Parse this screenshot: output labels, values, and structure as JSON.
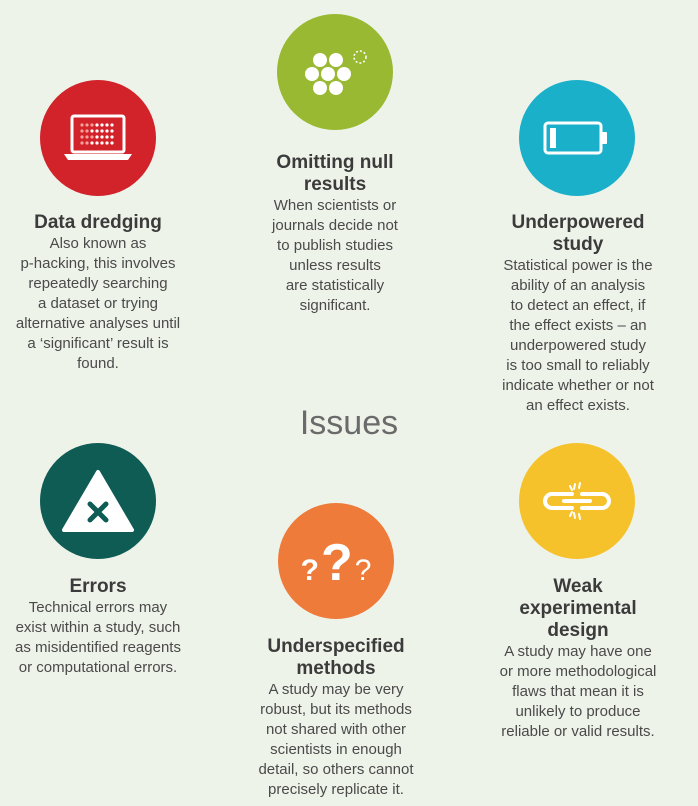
{
  "center_label": "Issues",
  "items": [
    {
      "title_lines": [
        "Data dredging"
      ],
      "desc_lines": [
        "Also known as",
        "p-hacking, this involves",
        "repeatedly searching",
        "a dataset or trying",
        "alternative analyses until",
        "a ‘significant’ result is",
        "found."
      ],
      "color": "#d2232a",
      "icon": "laptop-icon"
    },
    {
      "title_lines": [
        "Omitting null",
        "results"
      ],
      "desc_lines": [
        "When scientists or",
        "journals decide not",
        "to publish studies",
        "unless results",
        "are statistically",
        "significant."
      ],
      "color": "#9ab933",
      "icon": "dots-cluster-icon"
    },
    {
      "title_lines": [
        "Underpowered",
        "study"
      ],
      "desc_lines": [
        "Statistical power is the",
        "ability of an analysis",
        "to detect an effect, if",
        "the effect exists – an",
        "underpowered study",
        "is too small to reliably",
        "indicate whether or not",
        "an effect exists."
      ],
      "color": "#1ab0c9",
      "icon": "low-battery-icon"
    },
    {
      "title_lines": [
        "Errors"
      ],
      "desc_lines": [
        "Technical errors may",
        "exist within a study, such",
        "as misidentified reagents",
        "or computational errors."
      ],
      "color": "#0f5c55",
      "icon": "warning-x-icon"
    },
    {
      "title_lines": [
        "Underspecified",
        "methods"
      ],
      "desc_lines": [
        "A study may be very",
        "robust, but its methods",
        "not shared with other",
        "scientists in enough",
        "detail, so others cannot",
        "precisely replicate it."
      ],
      "color": "#ee7b3a",
      "icon": "question-marks-icon",
      "icon_text": [
        "?",
        "?",
        "?"
      ]
    },
    {
      "title_lines": [
        "Weak",
        "experimental",
        "design"
      ],
      "desc_lines": [
        "A study may have one",
        "or more methodological",
        "flaws that mean it is",
        "unlikely to produce",
        "reliable or valid results."
      ],
      "color": "#f5c22c",
      "icon": "broken-chain-icon"
    }
  ]
}
